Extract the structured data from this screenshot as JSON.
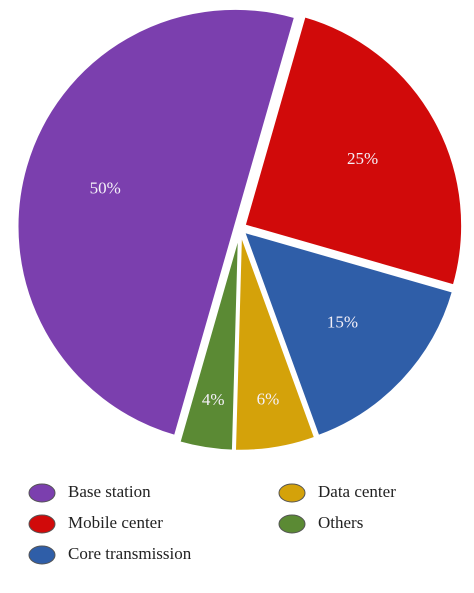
{
  "chart_data": {
    "type": "pie",
    "categories": [
      "Base station",
      "Mobile center",
      "Core transmission",
      "Data center",
      "Others"
    ],
    "values": [
      50,
      25,
      15,
      6,
      4
    ],
    "value_labels": [
      "50%",
      "25%",
      "15%",
      "6%",
      "4%"
    ],
    "colors": [
      "#7b3fae",
      "#d10a0a",
      "#2f5ea8",
      "#d4a20a",
      "#5b8a34"
    ],
    "legend": "bottom"
  }
}
